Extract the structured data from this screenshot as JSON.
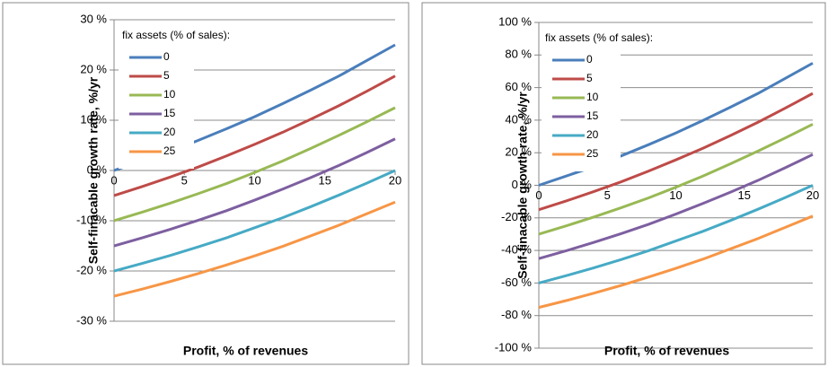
{
  "chart_data": [
    {
      "type": "line",
      "x": [
        0,
        2,
        4,
        6,
        8,
        10,
        12,
        14,
        16,
        18,
        20
      ],
      "xlabel": "Profit, % of revenues",
      "ylabel": "Self-finacable growth rate, %/yr",
      "legend_title": "fix assets (% of sales):",
      "legend": "upper left",
      "grid": true,
      "xlim": [
        0,
        20
      ],
      "xticks": [
        0,
        5,
        10,
        15,
        20
      ],
      "ylim": [
        -30,
        30
      ],
      "yticks": [
        {
          "value": -30,
          "label": "-30 %"
        },
        {
          "value": -20,
          "label": "-20 %"
        },
        {
          "value": -10,
          "label": "-10 %"
        },
        {
          "value": 0,
          "label": "0 %"
        },
        {
          "value": 10,
          "label": "10 %"
        },
        {
          "value": 20,
          "label": "20 %"
        },
        {
          "value": 30,
          "label": "30 %"
        }
      ],
      "series": [
        {
          "name": "0",
          "color": "#4a7ebb",
          "values": [
            0,
            1.9,
            3.8,
            6.0,
            8.3,
            10.7,
            13.3,
            16.0,
            18.8,
            21.9,
            25.0
          ]
        },
        {
          "name": "5",
          "color": "#be4b48",
          "values": [
            -5,
            -3.2,
            -1.3,
            0.7,
            2.9,
            5.2,
            7.6,
            10.2,
            12.9,
            15.8,
            18.8
          ]
        },
        {
          "name": "10",
          "color": "#98b954",
          "values": [
            -10,
            -8.3,
            -6.5,
            -4.6,
            -2.6,
            -0.4,
            1.9,
            4.4,
            7.0,
            9.7,
            12.5
          ]
        },
        {
          "name": "15",
          "color": "#7d5fa0",
          "values": [
            -15,
            -13.4,
            -11.7,
            -9.9,
            -8.0,
            -5.9,
            -3.7,
            -1.4,
            1.0,
            3.6,
            6.3
          ]
        },
        {
          "name": "20",
          "color": "#46aac5",
          "values": [
            -20,
            -18.5,
            -16.9,
            -15.2,
            -13.4,
            -11.4,
            -9.4,
            -7.2,
            -4.9,
            -2.5,
            0
          ]
        },
        {
          "name": "25",
          "color": "#f79646",
          "values": [
            -25,
            -23.6,
            -22.1,
            -20.5,
            -18.8,
            -17.0,
            -15.1,
            -13.0,
            -10.9,
            -8.6,
            -6.3
          ]
        }
      ]
    },
    {
      "type": "line",
      "x": [
        0,
        2,
        4,
        6,
        8,
        10,
        12,
        14,
        16,
        18,
        20
      ],
      "xlabel": "Profit, % of revenues",
      "ylabel": "Self-finacable growth rate, %/yr",
      "legend_title": "fix assets (% of sales):",
      "legend": "upper left",
      "grid": true,
      "xlim": [
        0,
        20
      ],
      "xticks": [
        0,
        5,
        10,
        15,
        20
      ],
      "ylim": [
        -100,
        100
      ],
      "yticks": [
        {
          "value": -100,
          "label": "-100 %"
        },
        {
          "value": -80,
          "label": "-80 %"
        },
        {
          "value": -60,
          "label": "-60 %"
        },
        {
          "value": -40,
          "label": "-40 %"
        },
        {
          "value": -20,
          "label": "-20 %"
        },
        {
          "value": 0,
          "label": "0 %"
        },
        {
          "value": 20,
          "label": "20 %"
        },
        {
          "value": 40,
          "label": "40 %"
        },
        {
          "value": 60,
          "label": "60 %"
        },
        {
          "value": 80,
          "label": "80 %"
        },
        {
          "value": 100,
          "label": "100 %"
        }
      ],
      "series": [
        {
          "name": "0",
          "color": "#4a7ebb",
          "values": [
            0,
            5.7,
            11.4,
            18,
            24.9,
            32.1,
            39.9,
            48,
            56.4,
            65.7,
            75
          ]
        },
        {
          "name": "5",
          "color": "#be4b48",
          "values": [
            -15,
            -9.6,
            -3.9,
            2.1,
            8.7,
            15.6,
            22.8,
            30.6,
            38.7,
            47.4,
            56.4
          ]
        },
        {
          "name": "10",
          "color": "#98b954",
          "values": [
            -30,
            -24.9,
            -19.5,
            -13.8,
            -7.8,
            -1.2,
            5.7,
            13.2,
            21,
            29.1,
            37.5
          ]
        },
        {
          "name": "15",
          "color": "#7d5fa0",
          "values": [
            -45,
            -40.2,
            -35.1,
            -29.7,
            -24,
            -17.7,
            -11.1,
            -4.2,
            3,
            10.8,
            18.9
          ]
        },
        {
          "name": "20",
          "color": "#46aac5",
          "values": [
            -60,
            -55.5,
            -50.7,
            -45.6,
            -40.2,
            -34.2,
            -28.2,
            -21.6,
            -14.7,
            -7.5,
            0
          ]
        },
        {
          "name": "25",
          "color": "#f79646",
          "values": [
            -75,
            -70.8,
            -66.3,
            -61.5,
            -56.4,
            -51,
            -45.3,
            -39,
            -32.7,
            -25.8,
            -18.9
          ]
        }
      ]
    }
  ]
}
